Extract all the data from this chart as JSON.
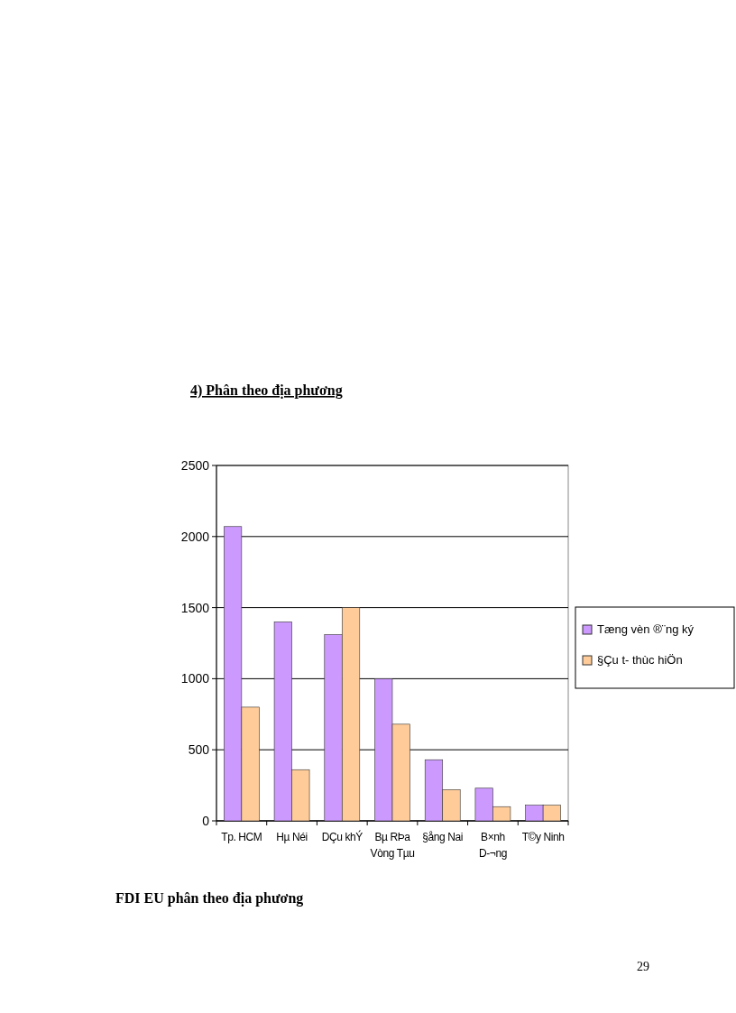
{
  "chart_data": {
    "type": "bar",
    "title": "4) Phân theo địa phương",
    "categories": [
      "Tp. HCM",
      "Hµ Néi",
      "DÇu khÝ",
      "Bµ RÞa Vòng Tµu",
      "§ång Nai",
      "B×nh D-¬ng",
      "T©y Ninh"
    ],
    "series": [
      {
        "name": "Tæng vèn ®¨ng ký",
        "color": "#cc99ff",
        "values": [
          2070,
          1400,
          1310,
          1000,
          430,
          230,
          110
        ]
      },
      {
        "name": "§Çu t- thùc hiÖn",
        "color": "#ffcc99",
        "values": [
          800,
          360,
          1500,
          680,
          220,
          100,
          110
        ]
      }
    ],
    "ylim": [
      0,
      2500
    ],
    "yticks": [
      0,
      500,
      1000,
      1500,
      2000,
      2500
    ],
    "grid": "y",
    "legend": "right",
    "annotations": [
      "FDI EU phân theo địa phương",
      "29"
    ]
  }
}
